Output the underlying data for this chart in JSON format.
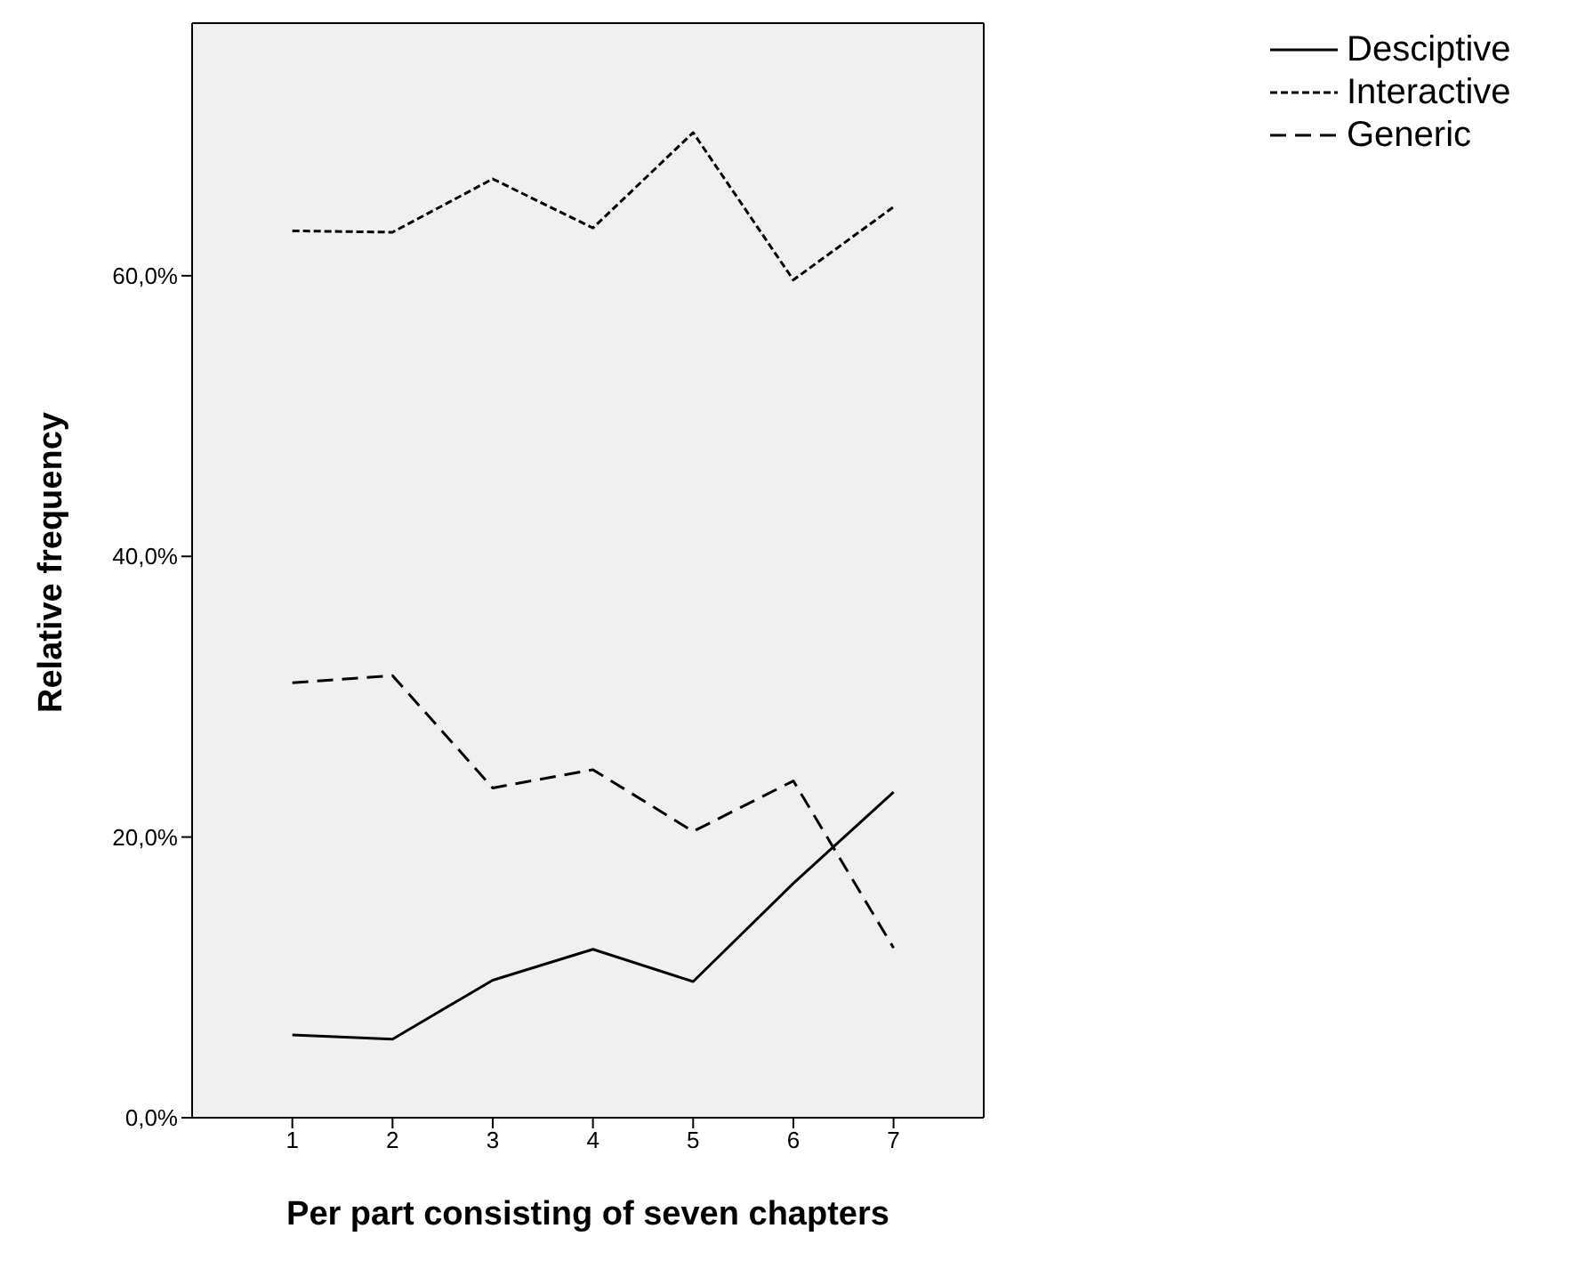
{
  "chart_data": {
    "type": "line",
    "xlabel": "Per part consisting of seven chapters",
    "ylabel": "Relative frequency",
    "x": [
      1,
      2,
      3,
      4,
      5,
      6,
      7
    ],
    "xlim": [
      0,
      7.9
    ],
    "xticks": [
      1,
      2,
      3,
      4,
      5,
      6,
      7
    ],
    "ylim": [
      0,
      78
    ],
    "yticks": [
      {
        "value": 0,
        "label": "0,0%"
      },
      {
        "value": 20,
        "label": "20,0%"
      },
      {
        "value": 40,
        "label": "40,0%"
      },
      {
        "value": 60,
        "label": "60,0%"
      }
    ],
    "series": [
      {
        "name": "Desciptive",
        "color": "#000000",
        "line_style": "solid",
        "values": [
          5.9,
          5.6,
          9.8,
          12.0,
          9.7,
          16.7,
          23.2
        ]
      },
      {
        "name": "Interactive",
        "color": "#000000",
        "line_style": "dotted",
        "values": [
          63.2,
          63.1,
          66.9,
          63.4,
          70.2,
          59.7,
          64.9
        ]
      },
      {
        "name": "Generic",
        "color": "#000000",
        "line_style": "dashed",
        "values": [
          31.0,
          31.5,
          23.5,
          24.8,
          20.4,
          24.0,
          12.1
        ]
      }
    ],
    "legend": "top right",
    "marker": "none"
  }
}
